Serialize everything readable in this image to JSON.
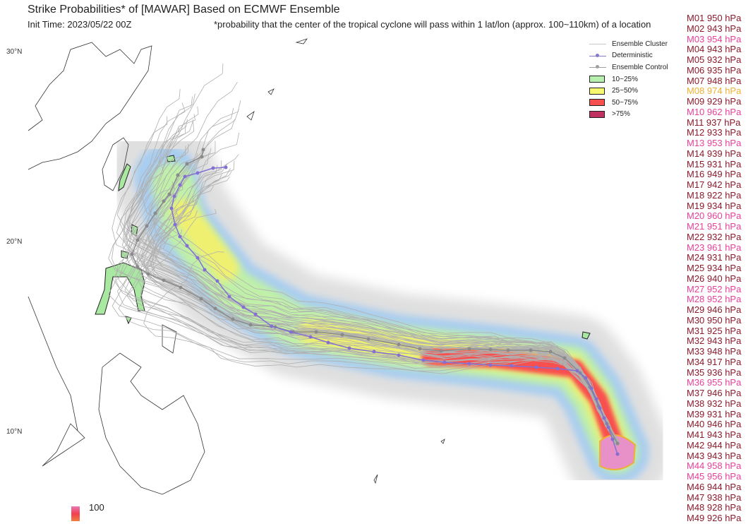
{
  "title": "Strike Probabilities* of [MAWAR] Based on ECMWF Ensemble",
  "init_time": "Init Time: 2023/05/22 00Z",
  "footnote": "*probability that the center of the tropical cyclone will pass within 1 lat/lon (approx. 100~110km) of a location",
  "latitude_labels": [
    "30°N",
    "20°N",
    "10°N"
  ],
  "colorbar": {
    "top_label": "100"
  },
  "legend": {
    "items": [
      {
        "label": "Ensemble Cluster",
        "type": "line",
        "color": "#c8c8c8"
      },
      {
        "label": "Deterministic",
        "type": "line-dot",
        "color": "#8878c8"
      },
      {
        "label": "Ensemble Control",
        "type": "line-dot",
        "color": "#a0a0a0"
      },
      {
        "label": "10~25%",
        "type": "box",
        "color": "#b8f0b0"
      },
      {
        "label": "25~50%",
        "type": "box",
        "color": "#f8f870"
      },
      {
        "label": "50~75%",
        "type": "box",
        "color": "#f85050"
      },
      {
        "label": ">75%",
        "type": "box",
        "color": "#c03060"
      }
    ]
  },
  "colors": {
    "strong": "#8b1a2b",
    "weak": "#e8409a",
    "weakest": "#f0b030"
  },
  "members": [
    {
      "label": "M01 950 hPa",
      "color": "#8b1a2b"
    },
    {
      "label": "M02 943 hPa",
      "color": "#8b1a2b"
    },
    {
      "label": "M03 954 hPa",
      "color": "#e8409a"
    },
    {
      "label": "M04 943 hPa",
      "color": "#8b1a2b"
    },
    {
      "label": "M05 932 hPa",
      "color": "#8b1a2b"
    },
    {
      "label": "M06 935 hPa",
      "color": "#8b1a2b"
    },
    {
      "label": "M07 948 hPa",
      "color": "#8b1a2b"
    },
    {
      "label": "M08 974 hPa",
      "color": "#f0b030"
    },
    {
      "label": "M09 929 hPa",
      "color": "#8b1a2b"
    },
    {
      "label": "M10 962 hPa",
      "color": "#e8409a"
    },
    {
      "label": "M11 937 hPa",
      "color": "#8b1a2b"
    },
    {
      "label": "M12 933 hPa",
      "color": "#8b1a2b"
    },
    {
      "label": "M13 953 hPa",
      "color": "#e8409a"
    },
    {
      "label": "M14 939 hPa",
      "color": "#8b1a2b"
    },
    {
      "label": "M15 931 hPa",
      "color": "#8b1a2b"
    },
    {
      "label": "M16 949 hPa",
      "color": "#8b1a2b"
    },
    {
      "label": "M17 942 hPa",
      "color": "#8b1a2b"
    },
    {
      "label": "M18 922 hPa",
      "color": "#8b1a2b"
    },
    {
      "label": "M19 934 hPa",
      "color": "#8b1a2b"
    },
    {
      "label": "M20 960 hPa",
      "color": "#e8409a"
    },
    {
      "label": "M21 951 hPa",
      "color": "#e8409a"
    },
    {
      "label": "M22 932 hPa",
      "color": "#8b1a2b"
    },
    {
      "label": "M23 961 hPa",
      "color": "#e8409a"
    },
    {
      "label": "M24 931 hPa",
      "color": "#8b1a2b"
    },
    {
      "label": "M25 934 hPa",
      "color": "#8b1a2b"
    },
    {
      "label": "M26 940 hPa",
      "color": "#8b1a2b"
    },
    {
      "label": "M27 952 hPa",
      "color": "#e8409a"
    },
    {
      "label": "M28 952 hPa",
      "color": "#e8409a"
    },
    {
      "label": "M29 946 hPa",
      "color": "#8b1a2b"
    },
    {
      "label": "M30 950 hPa",
      "color": "#8b1a2b"
    },
    {
      "label": "M31 925 hPa",
      "color": "#8b1a2b"
    },
    {
      "label": "M32 943 hPa",
      "color": "#8b1a2b"
    },
    {
      "label": "M33 948 hPa",
      "color": "#8b1a2b"
    },
    {
      "label": "M34 917 hPa",
      "color": "#8b1a2b"
    },
    {
      "label": "M35 936 hPa",
      "color": "#8b1a2b"
    },
    {
      "label": "M36 955 hPa",
      "color": "#e8409a"
    },
    {
      "label": "M37 946 hPa",
      "color": "#8b1a2b"
    },
    {
      "label": "M38 932 hPa",
      "color": "#8b1a2b"
    },
    {
      "label": "M39 931 hPa",
      "color": "#8b1a2b"
    },
    {
      "label": "M40 946 hPa",
      "color": "#8b1a2b"
    },
    {
      "label": "M41 943 hPa",
      "color": "#8b1a2b"
    },
    {
      "label": "M42 944 hPa",
      "color": "#8b1a2b"
    },
    {
      "label": "M43 943 hPa",
      "color": "#8b1a2b"
    },
    {
      "label": "M44 958 hPa",
      "color": "#e8409a"
    },
    {
      "label": "M45 956 hPa",
      "color": "#e8409a"
    },
    {
      "label": "M46 944 hPa",
      "color": "#8b1a2b"
    },
    {
      "label": "M47 938 hPa",
      "color": "#8b1a2b"
    },
    {
      "label": "M48 928 hPa",
      "color": "#8b1a2b"
    },
    {
      "label": "M49 926 hPa",
      "color": "#8b1a2b"
    }
  ]
}
